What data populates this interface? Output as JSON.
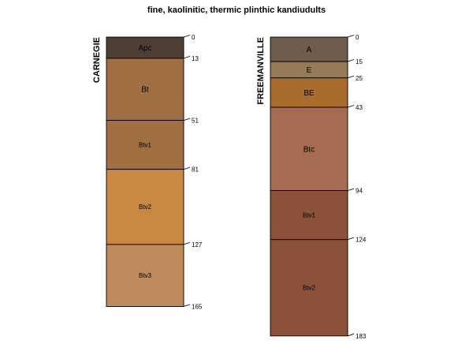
{
  "chart_data": {
    "type": "soil-profile",
    "title": "fine, kaolinitic, thermic plinthic kandiudults",
    "depth_units": "cm",
    "profiles": [
      {
        "name": "CARNEGIE",
        "max_depth": 165,
        "horizons": [
          {
            "name": "Apc",
            "top": 0,
            "bottom": 13,
            "color": "#4e3f34",
            "text_color": "#e8e8e8"
          },
          {
            "name": "Bt",
            "top": 13,
            "bottom": 51,
            "color": "#a06f42",
            "text_color": "#f2f2f2"
          },
          {
            "name": "Btv1",
            "top": 51,
            "bottom": 81,
            "color": "#a06f42",
            "text_color": "#f2f2f2"
          },
          {
            "name": "Btv2",
            "top": 81,
            "bottom": 127,
            "color": "#c98842",
            "text_color": "#222222"
          },
          {
            "name": "Btv3",
            "top": 127,
            "bottom": 165,
            "color": "#bd8a5b",
            "text_color": "#222222"
          }
        ],
        "depth_ticks": [
          0,
          13,
          51,
          81,
          127,
          165
        ]
      },
      {
        "name": "FREEMANVILLE",
        "max_depth": 183,
        "horizons": [
          {
            "name": "A",
            "top": 0,
            "bottom": 15,
            "color": "#6e5d4d",
            "text_color": "#f2f2f2"
          },
          {
            "name": "E",
            "top": 15,
            "bottom": 25,
            "color": "#957a56",
            "text_color": "#f2f2f2"
          },
          {
            "name": "BE",
            "top": 25,
            "bottom": 43,
            "color": "#a86d2c",
            "text_color": "#111111"
          },
          {
            "name": "Btc",
            "top": 43,
            "bottom": 94,
            "color": "#a66c51",
            "text_color": "#111111"
          },
          {
            "name": "Btv1",
            "top": 94,
            "bottom": 124,
            "color": "#8c513b",
            "text_color": "#e8e8e8"
          },
          {
            "name": "Btv2",
            "top": 124,
            "bottom": 183,
            "color": "#8c513b",
            "text_color": "#e8e8e8"
          }
        ],
        "depth_ticks": [
          0,
          15,
          25,
          43,
          94,
          124,
          183
        ]
      }
    ]
  }
}
